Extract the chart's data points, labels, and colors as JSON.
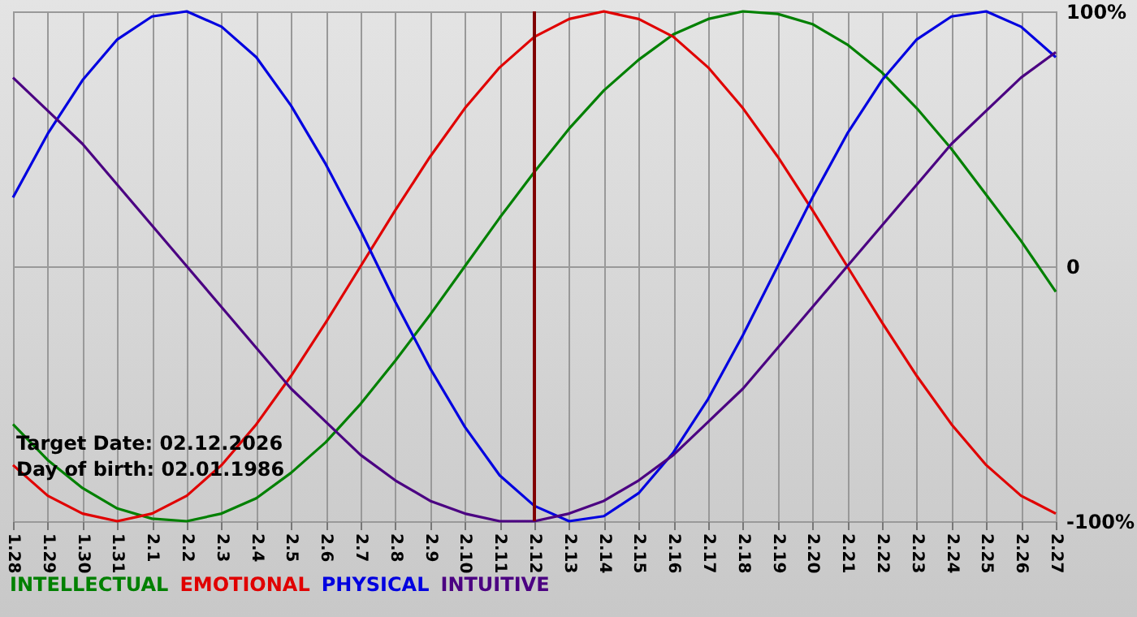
{
  "chart_data": {
    "type": "line",
    "categories": [
      "1.28",
      "1.29",
      "1.30",
      "1.31",
      "2.1",
      "2.2",
      "2.3",
      "2.4",
      "2.5",
      "2.6",
      "2.7",
      "2.8",
      "2.9",
      "2.10",
      "2.11",
      "2.12",
      "2.13",
      "2.14",
      "2.15",
      "2.16",
      "2.17",
      "2.18",
      "2.19",
      "2.20",
      "2.21",
      "2.22",
      "2.23",
      "2.24",
      "2.25",
      "2.26",
      "2.27"
    ],
    "series": [
      {
        "name": "INTELLECTUAL",
        "color": "#008000",
        "values": [
          -62,
          -76,
          -87,
          -95,
          -99,
          -100,
          -97,
          -91,
          -81,
          -69,
          -54,
          -37,
          -19,
          0,
          19,
          37,
          54,
          69,
          81,
          91,
          97,
          100,
          99,
          95,
          87,
          76,
          62,
          46,
          28,
          10,
          -10
        ]
      },
      {
        "name": "EMOTIONAL",
        "color": "#e00000",
        "values": [
          -78,
          -90,
          -97,
          -100,
          -97,
          -90,
          -78,
          -62,
          -43,
          -22,
          0,
          22,
          43,
          62,
          78,
          90,
          97,
          100,
          97,
          90,
          78,
          62,
          43,
          22,
          0,
          -22,
          -43,
          -62,
          -78,
          -90,
          -97
        ]
      },
      {
        "name": "PHYSICAL",
        "color": "#0000e0",
        "values": [
          27,
          52,
          73,
          89,
          98,
          100,
          94,
          82,
          63,
          40,
          14,
          -14,
          -40,
          -63,
          -82,
          -94,
          -100,
          -98,
          -89,
          -73,
          -52,
          -27,
          0,
          27,
          52,
          73,
          89,
          98,
          100,
          94,
          82
        ]
      },
      {
        "name": "INTUITIVE",
        "color": "#4b0082",
        "values": [
          74,
          61,
          48,
          32,
          16,
          0,
          -16,
          -32,
          -48,
          -61,
          -74,
          -84,
          -92,
          -97,
          -100,
          -100,
          -97,
          -92,
          -84,
          -74,
          -61,
          -48,
          -32,
          -16,
          0,
          16,
          32,
          48,
          61,
          74,
          84
        ]
      }
    ],
    "ylim": [
      -100,
      100
    ],
    "yticks": [
      {
        "value": -100,
        "label": "-100%"
      },
      0,
      {
        "value": 100,
        "label": "100%"
      }
    ],
    "grid": true,
    "legend": "bottom",
    "marker": "none",
    "ref_lines": [
      {
        "axis": "x",
        "value": "2.12",
        "color": "#800000"
      }
    ],
    "annotations": [
      "Target Date: 02.12.2026",
      "Day of birth: 02.01.1986"
    ]
  }
}
